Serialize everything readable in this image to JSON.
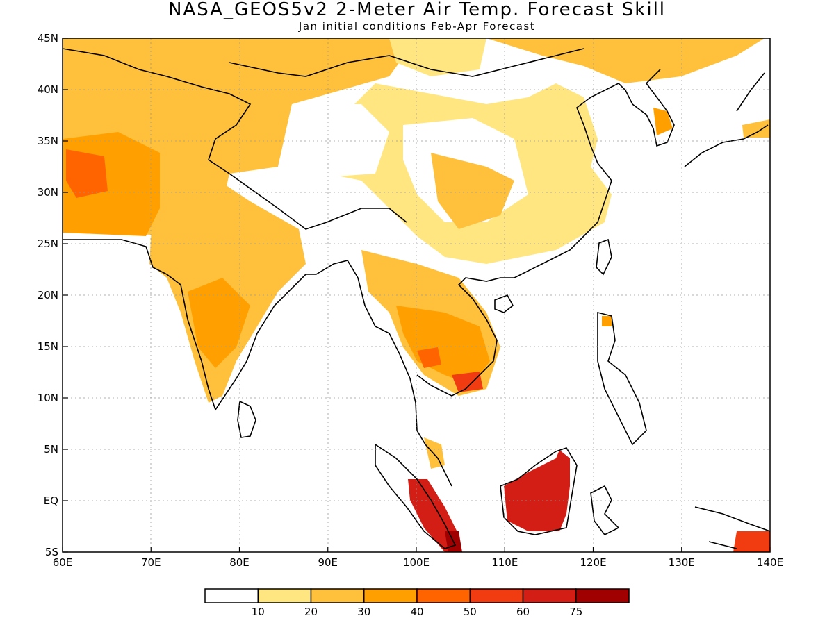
{
  "title": "NASA_GEOS5v2 2-Meter Air Temp. Forecast Skill",
  "subtitle": "Jan initial conditions  Feb-Apr Forecast",
  "map": {
    "lon_range": [
      60,
      140
    ],
    "lat_range": [
      -5,
      45
    ],
    "x_ticks": [
      {
        "value": 60,
        "label": "60E"
      },
      {
        "value": 70,
        "label": "70E"
      },
      {
        "value": 80,
        "label": "80E"
      },
      {
        "value": 90,
        "label": "90E"
      },
      {
        "value": 100,
        "label": "100E"
      },
      {
        "value": 110,
        "label": "110E"
      },
      {
        "value": 120,
        "label": "120E"
      },
      {
        "value": 130,
        "label": "130E"
      },
      {
        "value": 140,
        "label": "140E"
      }
    ],
    "y_ticks": [
      {
        "value": 45,
        "label": "45N"
      },
      {
        "value": 40,
        "label": "40N"
      },
      {
        "value": 35,
        "label": "35N"
      },
      {
        "value": 30,
        "label": "30N"
      },
      {
        "value": 25,
        "label": "25N"
      },
      {
        "value": 20,
        "label": "20N"
      },
      {
        "value": 15,
        "label": "15N"
      },
      {
        "value": 10,
        "label": "10N"
      },
      {
        "value": 5,
        "label": "5N"
      },
      {
        "value": 0,
        "label": "EQ"
      },
      {
        "value": -5,
        "label": "5S"
      }
    ],
    "grid": "dotted"
  },
  "legend": {
    "colors": [
      "#ffffff",
      "#ffe680",
      "#ffc03c",
      "#ffa000",
      "#ff6400",
      "#f03c10",
      "#d21e14",
      "#a00000"
    ],
    "labels": [
      "10",
      "20",
      "30",
      "40",
      "50",
      "60",
      "75"
    ]
  }
}
